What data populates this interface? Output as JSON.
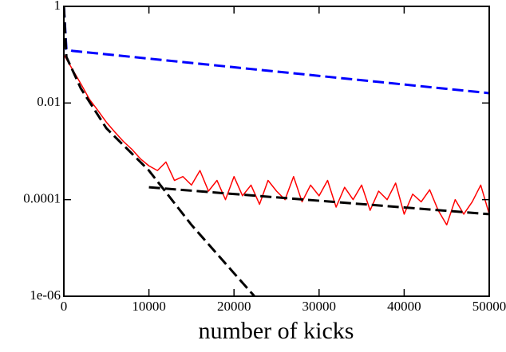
{
  "chart_data": {
    "type": "line",
    "x_label": "number of kicks",
    "ylog": true,
    "xlim": [
      0,
      50000
    ],
    "xticks": [
      0,
      10000,
      20000,
      30000,
      40000,
      50000
    ],
    "ylim": [
      1e-06,
      1
    ],
    "yticks": [
      1,
      0.01,
      0.0001,
      {
        "value": 1e-06,
        "label": "1e-06"
      }
    ],
    "series": [
      {
        "color": "#ff0000",
        "style": "solid",
        "x": [
          0,
          1000,
          2000,
          3000,
          4000,
          5000,
          6000,
          7000,
          8000,
          9000,
          10000,
          11000,
          12000,
          13000,
          14000,
          15000,
          16000,
          17000,
          18000,
          19000,
          20000,
          21000,
          22000,
          23000,
          24000,
          25000,
          26000,
          27000,
          28000,
          29000,
          30000,
          31000,
          32000,
          33000,
          34000,
          35000,
          36000,
          37000,
          38000,
          39000,
          40000,
          41000,
          42000,
          43000,
          44000,
          45000,
          46000,
          47000,
          48000,
          49000,
          50000
        ],
        "values": [
          0.1,
          0.05,
          0.025,
          0.012,
          0.007,
          0.004,
          0.0025,
          0.0016,
          0.0011,
          0.0007,
          0.0005,
          0.0004,
          0.0006,
          0.00025,
          0.0003,
          0.0002,
          0.0004,
          0.00015,
          0.00025,
          0.0001,
          0.0003,
          0.00012,
          0.0002,
          8e-05,
          0.00025,
          0.00015,
          0.0001,
          0.0003,
          9e-05,
          0.0002,
          0.00012,
          0.00025,
          7e-05,
          0.00018,
          0.0001,
          0.0002,
          6e-05,
          0.00015,
          0.0001,
          0.00022,
          5e-05,
          0.00013,
          9e-05,
          0.00016,
          6e-05,
          3e-05,
          0.0001,
          5e-05,
          9e-05,
          0.0002,
          5e-05
        ]
      },
      {
        "color": "#0000ff",
        "style": "dashed",
        "x": [
          0,
          300,
          1000,
          50000
        ],
        "values": [
          1,
          0.13,
          0.12,
          0.016
        ]
      },
      {
        "color": "#000000",
        "style": "dashed",
        "x": [
          0,
          300,
          2000,
          5000,
          10000,
          15000,
          20000,
          22400
        ],
        "values": [
          1,
          0.09,
          0.02,
          0.003,
          0.0004,
          3e-05,
          3e-06,
          1e-06
        ]
      },
      {
        "color": "#000000",
        "style": "dashed",
        "x": [
          10000,
          50000
        ],
        "values": [
          0.00018,
          5e-05
        ]
      }
    ]
  }
}
